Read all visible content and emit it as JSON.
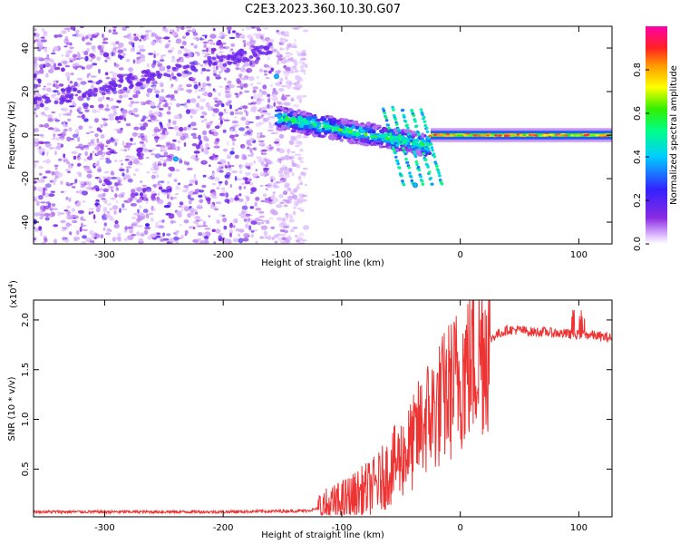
{
  "figure": {
    "title": "C2E3.2023.360.10.30.G07"
  },
  "chart_data": [
    {
      "type": "heatmap",
      "xlabel": "Height of straight line (km)",
      "ylabel": "Frequency (Hz)",
      "xlim": [
        -360,
        128
      ],
      "ylim": [
        -50,
        50
      ],
      "xticks": [
        -300,
        -200,
        -100,
        0,
        100
      ],
      "xtick_labels": [
        "-300",
        "-200",
        "-100",
        "0",
        "100"
      ],
      "yticks": [
        -40,
        -20,
        0,
        20,
        40
      ],
      "ytick_labels": [
        "-40",
        "-20",
        "0",
        "20",
        "40"
      ],
      "colorbar": {
        "label": "Normalized spectral amplitude",
        "range": [
          0,
          1
        ],
        "ticks": [
          0.0,
          0.2,
          0.4,
          0.6,
          0.8
        ],
        "tick_labels": [
          "0.0",
          "0.2",
          "0.4",
          "0.6",
          "0.8"
        ],
        "colormap": "rainbow (white-violet-blue-cyan-green-yellow-orange-red-magenta)"
      },
      "regions": [
        {
          "description": "noise",
          "x_range": [
            -360,
            -150
          ],
          "freq_range": [
            -50,
            50
          ],
          "amplitude": 0.2
        },
        {
          "description": "descending-trace",
          "x_range": [
            -155,
            -25
          ],
          "freq": [
            8,
            -5
          ],
          "amplitude": 0.55
        },
        {
          "description": "steady-trace",
          "x_range": [
            -25,
            128
          ],
          "freq": 0,
          "amplitude": 0.85
        }
      ],
      "grid": false
    },
    {
      "type": "line",
      "xlabel": "Height of straight line (km)",
      "ylabel": "SNR (10 * v/v)",
      "y_multiplier_label": "(x10",
      "y_multiplier_exponent": "4",
      "y_multiplier_close": ")",
      "xlim": [
        -360,
        128
      ],
      "ylim": [
        0.02,
        2.2
      ],
      "xticks": [
        -300,
        -200,
        -100,
        0,
        100
      ],
      "xtick_labels": [
        "-300",
        "-200",
        "-100",
        "0",
        "100"
      ],
      "yticks": [
        0.5,
        1.0,
        1.5,
        2.0
      ],
      "ytick_labels": [
        "0.5",
        "1.0",
        "1.5",
        "2.0"
      ],
      "series": [
        {
          "color": "#ee3333",
          "x": [
            -360,
            -300,
            -200,
            -130,
            -110,
            -90,
            -70,
            -55,
            -40,
            -30,
            -20,
            -12,
            -5,
            0,
            10,
            20,
            30,
            40,
            50,
            60,
            70,
            80,
            90,
            100,
            110,
            120,
            128
          ],
          "y": [
            0.07,
            0.07,
            0.07,
            0.08,
            0.12,
            0.22,
            0.35,
            0.55,
            0.75,
            1.0,
            1.1,
            1.25,
            1.35,
            1.45,
            1.6,
            1.75,
            1.85,
            1.9,
            1.9,
            1.88,
            1.88,
            1.87,
            1.86,
            1.85,
            1.85,
            1.83,
            1.82
          ]
        }
      ],
      "grid": false
    }
  ]
}
